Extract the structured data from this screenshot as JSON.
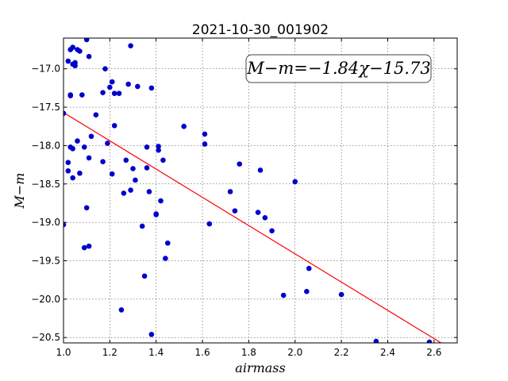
{
  "chart_data": {
    "type": "scatter",
    "title": "2021-10-30_001902",
    "xlabel": "airmass",
    "ylabel": "M−m",
    "xlim": [
      1.0,
      2.7
    ],
    "ylim": [
      -20.57,
      -16.6
    ],
    "xticks": [
      1.0,
      1.2,
      1.4,
      1.6,
      1.8,
      2.0,
      2.2,
      2.4,
      2.6
    ],
    "xtick_labels": [
      "1.0",
      "1.2",
      "1.4",
      "1.6",
      "1.8",
      "2.0",
      "2.2",
      "2.4",
      "2.6"
    ],
    "yticks": [
      -20.5,
      -20.0,
      -19.5,
      -19.0,
      -18.5,
      -18.0,
      -17.5,
      -17.0
    ],
    "ytick_labels": [
      "−20.5",
      "−20.0",
      "−19.5",
      "−19.0",
      "−18.5",
      "−18.0",
      "−17.5",
      "−17.0"
    ],
    "grid": true,
    "annotation": "M−m=−1.84χ−15.73",
    "colors": {
      "points": "#0000cc",
      "fit_line": "#ff0000"
    },
    "fit_line": {
      "slope": -1.84,
      "intercept": -15.73
    },
    "points": [
      [
        1.0,
        -17.58
      ],
      [
        1.0,
        -19.03
      ],
      [
        1.02,
        -18.22
      ],
      [
        1.02,
        -18.33
      ],
      [
        1.02,
        -16.9
      ],
      [
        1.03,
        -16.75
      ],
      [
        1.03,
        -17.34
      ],
      [
        1.03,
        -17.35
      ],
      [
        1.03,
        -18.02
      ],
      [
        1.04,
        -16.72
      ],
      [
        1.04,
        -16.94
      ],
      [
        1.04,
        -18.42
      ],
      [
        1.04,
        -18.04
      ],
      [
        1.05,
        -16.96
      ],
      [
        1.05,
        -16.92
      ],
      [
        1.06,
        -16.75
      ],
      [
        1.06,
        -17.94
      ],
      [
        1.07,
        -16.77
      ],
      [
        1.07,
        -18.36
      ],
      [
        1.08,
        -17.34
      ],
      [
        1.09,
        -18.02
      ],
      [
        1.09,
        -19.33
      ],
      [
        1.1,
        -16.62
      ],
      [
        1.1,
        -18.81
      ],
      [
        1.11,
        -16.84
      ],
      [
        1.11,
        -18.16
      ],
      [
        1.11,
        -19.31
      ],
      [
        1.12,
        -17.88
      ],
      [
        1.14,
        -17.6
      ],
      [
        1.17,
        -18.21
      ],
      [
        1.17,
        -17.31
      ],
      [
        1.18,
        -17.0
      ],
      [
        1.19,
        -17.97
      ],
      [
        1.2,
        -17.24
      ],
      [
        1.21,
        -18.37
      ],
      [
        1.21,
        -17.17
      ],
      [
        1.22,
        -17.74
      ],
      [
        1.22,
        -17.32
      ],
      [
        1.24,
        -17.32
      ],
      [
        1.25,
        -20.14
      ],
      [
        1.26,
        -18.62
      ],
      [
        1.27,
        -18.19
      ],
      [
        1.28,
        -17.2
      ],
      [
        1.29,
        -16.7
      ],
      [
        1.29,
        -18.58
      ],
      [
        1.3,
        -18.3
      ],
      [
        1.31,
        -18.45
      ],
      [
        1.32,
        -17.23
      ],
      [
        1.34,
        -19.05
      ],
      [
        1.35,
        -19.7
      ],
      [
        1.36,
        -18.29
      ],
      [
        1.36,
        -18.02
      ],
      [
        1.37,
        -18.6
      ],
      [
        1.38,
        -17.25
      ],
      [
        1.38,
        -20.46
      ],
      [
        1.4,
        -18.9
      ],
      [
        1.4,
        -18.89
      ],
      [
        1.41,
        -18.01
      ],
      [
        1.41,
        -18.06
      ],
      [
        1.42,
        -18.72
      ],
      [
        1.43,
        -18.19
      ],
      [
        1.44,
        -19.47
      ],
      [
        1.45,
        -19.27
      ],
      [
        1.52,
        -17.75
      ],
      [
        1.61,
        -17.85
      ],
      [
        1.61,
        -17.98
      ],
      [
        1.63,
        -19.02
      ],
      [
        1.72,
        -18.6
      ],
      [
        1.74,
        -18.85
      ],
      [
        1.76,
        -18.24
      ],
      [
        1.84,
        -18.87
      ],
      [
        1.85,
        -18.32
      ],
      [
        1.87,
        -18.94
      ],
      [
        1.9,
        -19.11
      ],
      [
        1.95,
        -19.95
      ],
      [
        2.0,
        -18.47
      ],
      [
        2.05,
        -19.9
      ],
      [
        2.06,
        -19.6
      ],
      [
        2.2,
        -19.94
      ],
      [
        2.35,
        -20.55
      ],
      [
        2.58,
        -20.56
      ]
    ]
  }
}
